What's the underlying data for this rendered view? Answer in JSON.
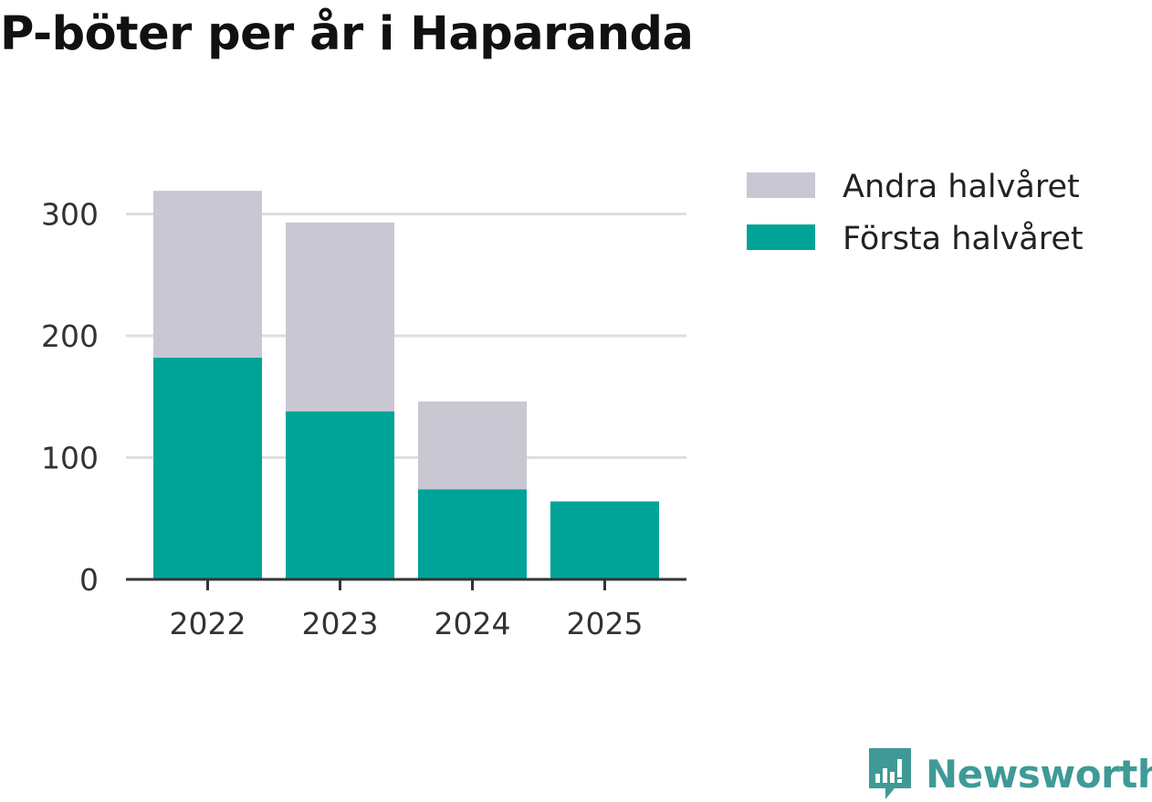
{
  "chart_data": {
    "type": "bar",
    "stacked": true,
    "title": "P-böter per år i Haparanda",
    "xlabel": "",
    "ylabel": "",
    "categories": [
      "2022",
      "2023",
      "2024",
      "2025"
    ],
    "series": [
      {
        "name": "Första halvåret",
        "values": [
          182,
          138,
          74,
          64
        ],
        "color": "#00a398"
      },
      {
        "name": "Andra halvåret",
        "values": [
          137,
          155,
          72,
          0
        ],
        "color": "#c8c7d2"
      }
    ],
    "yticks": [
      0,
      100,
      200,
      300
    ],
    "ylim": [
      0,
      320
    ],
    "grid": true,
    "legend": {
      "position": "top-right",
      "items": [
        {
          "label": "Andra halvåret",
          "color": "#c8c7d2"
        },
        {
          "label": "Första halvåret",
          "color": "#00a398"
        }
      ]
    }
  },
  "brand": {
    "name": "Newsworthy",
    "color": "#3f9a96"
  }
}
